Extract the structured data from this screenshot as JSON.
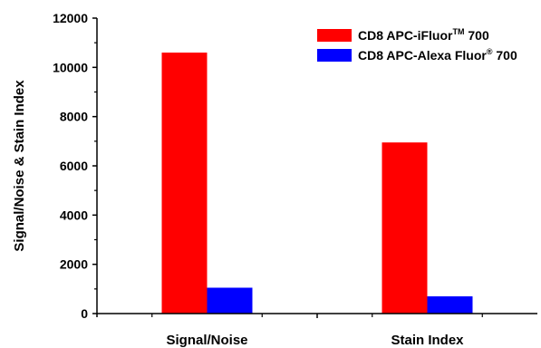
{
  "chart_data": {
    "type": "bar",
    "categories": [
      "Signal/Noise",
      "Stain Index"
    ],
    "series": [
      {
        "name": "CD8 APC-iFluor™ 700",
        "name_base": "CD8 APC-iFluor",
        "name_mark": "TM",
        "name_suffix": " 700",
        "color": "#ff0000",
        "values": [
          10600,
          6950
        ]
      },
      {
        "name": "CD8 APC-Alexa Fluor® 700",
        "name_base": "CD8 APC-Alexa Fluor",
        "name_mark": "®",
        "name_suffix": " 700",
        "color": "#0000ff",
        "values": [
          1050,
          700
        ]
      }
    ],
    "title": "",
    "xlabel": "",
    "ylabel": "Signal/Noise & Stain Index",
    "ylim": [
      0,
      12000
    ],
    "yticks": [
      "0",
      "2000",
      "4000",
      "6000",
      "8000",
      "10000",
      "12000"
    ],
    "grid": false,
    "legend_position": "top-right"
  }
}
